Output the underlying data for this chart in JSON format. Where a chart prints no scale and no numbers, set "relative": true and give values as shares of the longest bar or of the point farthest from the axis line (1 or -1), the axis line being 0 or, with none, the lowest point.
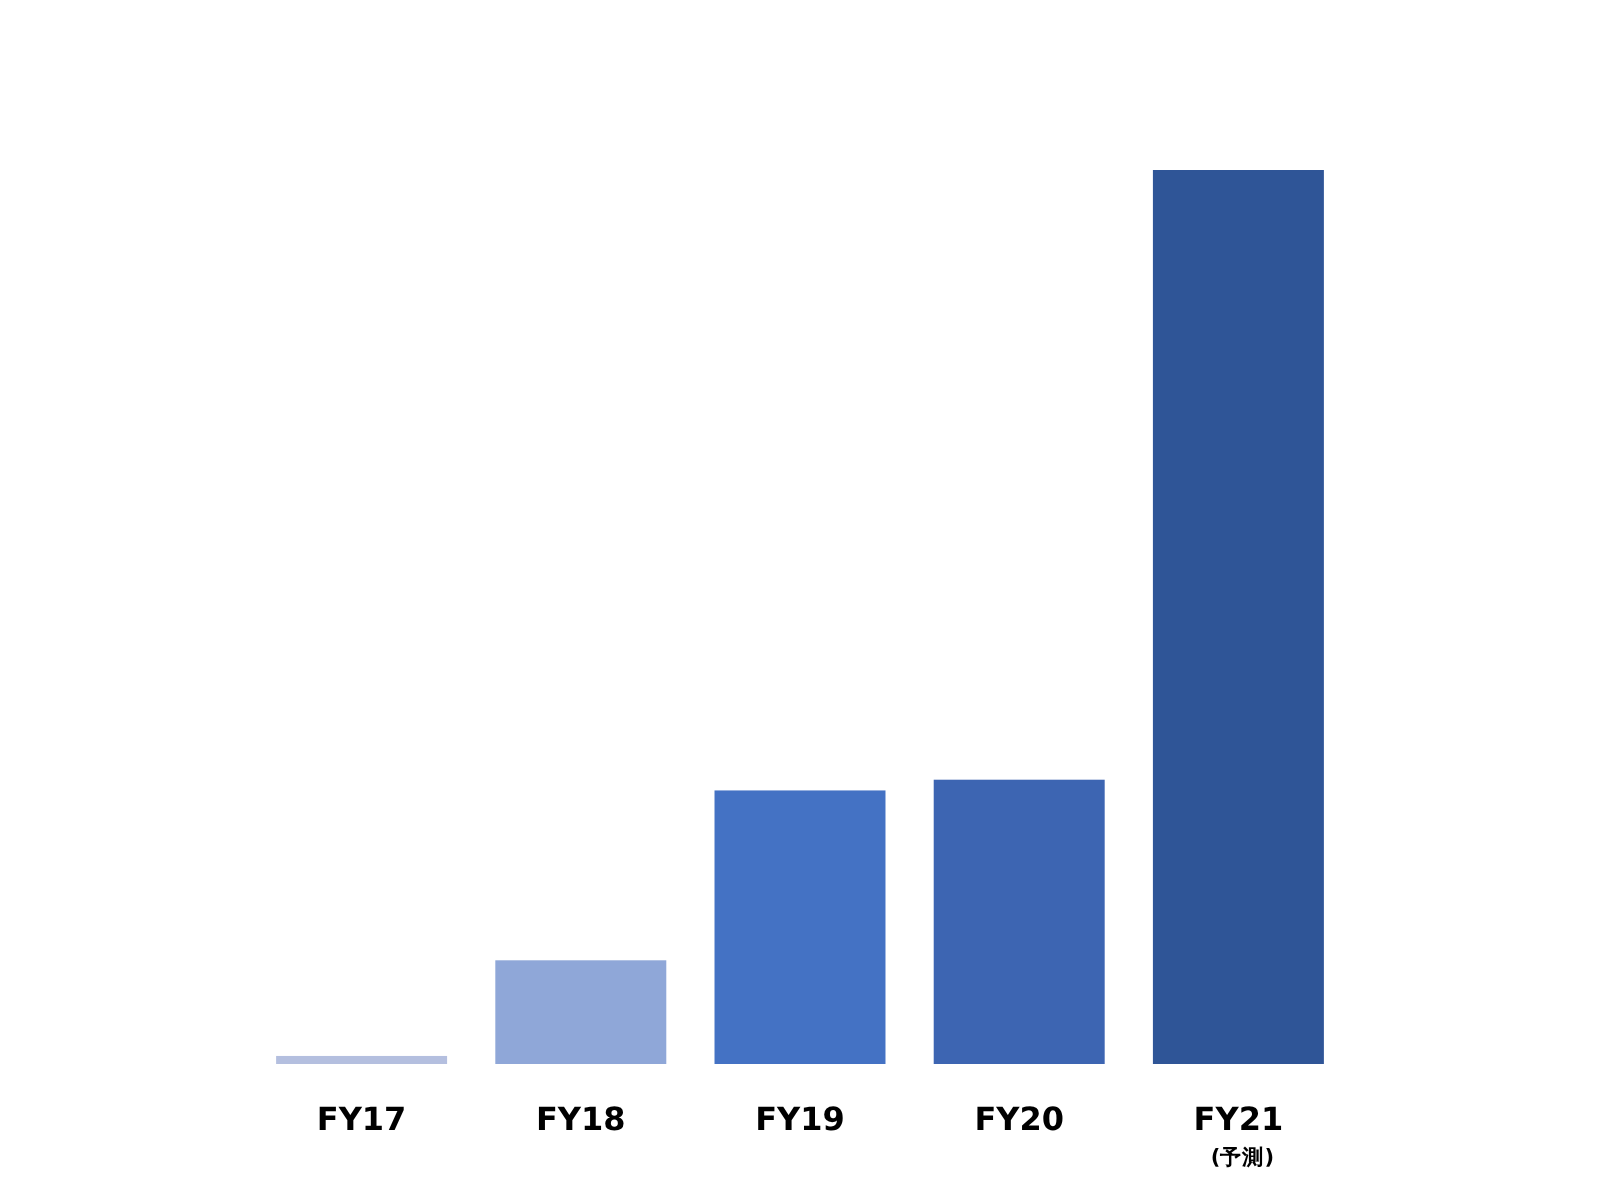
{
  "chart_data": {
    "type": "bar",
    "relative": true,
    "categories": [
      "FY17",
      "FY18",
      "FY19",
      "FY20",
      "FY21\n(予測)"
    ],
    "values": [
      0.009,
      0.116,
      0.306,
      0.318,
      1
    ],
    "colors": [
      "#b4bfdf",
      "#8fa7d8",
      "#4472c4",
      "#3d65b2",
      "#2f5597"
    ]
  }
}
